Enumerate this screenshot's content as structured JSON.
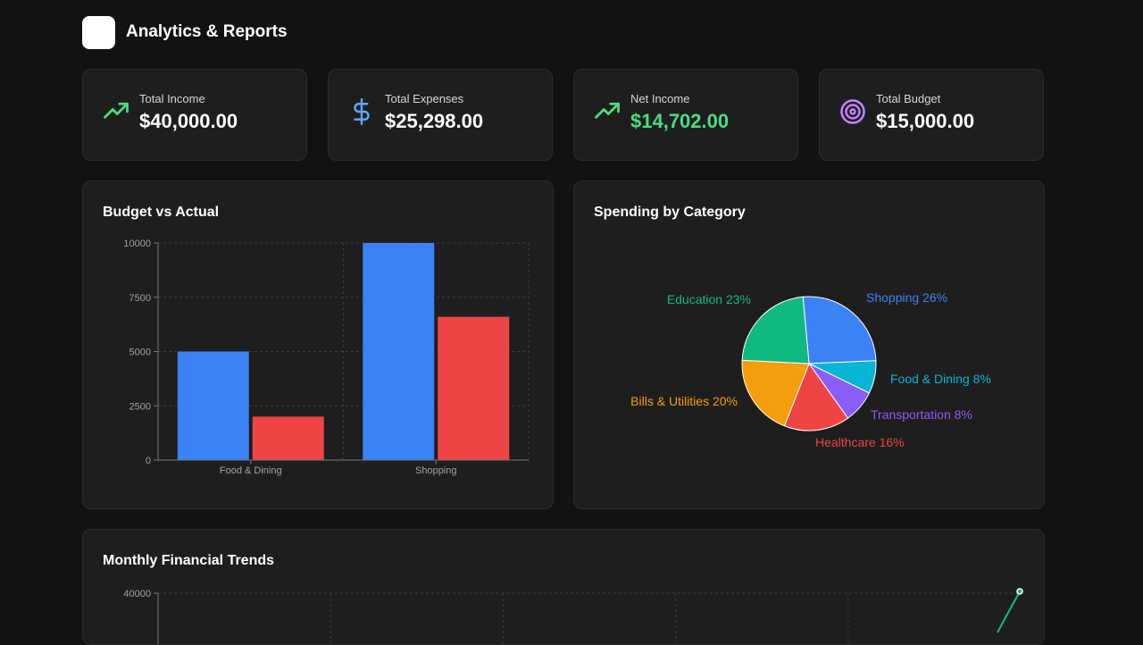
{
  "header": {
    "title": "Analytics & Reports"
  },
  "stats": [
    {
      "label": "Total Income",
      "value": "$40,000.00",
      "icon": "trending-up-icon",
      "color": "#4ade80"
    },
    {
      "label": "Total Expenses",
      "value": "$25,298.00",
      "icon": "dollar-icon",
      "color": "#60a5fa"
    },
    {
      "label": "Net Income",
      "value": "$14,702.00",
      "icon": "trending-up-icon",
      "color": "#4ade80"
    },
    {
      "label": "Total Budget",
      "value": "$15,000.00",
      "icon": "target-icon",
      "color": "#c084fc"
    }
  ],
  "panels": {
    "budget_title": "Budget vs Actual",
    "spending_title": "Spending by Category",
    "trends_title": "Monthly Financial Trends"
  },
  "chart_data": [
    {
      "type": "bar",
      "title": "Budget vs Actual",
      "categories": [
        "Food & Dining",
        "Shopping"
      ],
      "series": [
        {
          "values": [
            5000,
            10000
          ],
          "color": "#3b82f6"
        },
        {
          "values": [
            2000,
            6600
          ],
          "color": "#ef4444"
        }
      ],
      "yticks": [
        "0",
        "2500",
        "5000",
        "7500",
        "10000"
      ],
      "ylim": [
        0,
        10000
      ],
      "grid": true
    },
    {
      "type": "pie",
      "title": "Spending by Category",
      "slices": [
        {
          "label": "Shopping",
          "percent": 26,
          "text": "Shopping 26%",
          "color": "#3b82f6"
        },
        {
          "label": "Food & Dining",
          "percent": 8,
          "text": "Food & Dining 8%",
          "color": "#06b6d4"
        },
        {
          "label": "Transportation",
          "percent": 8,
          "text": "Transportation 8%",
          "color": "#8b5cf6"
        },
        {
          "label": "Healthcare",
          "percent": 16,
          "text": "Healthcare 16%",
          "color": "#ef4444"
        },
        {
          "label": "Bills & Utilities",
          "percent": 20,
          "text": "Bills & Utilities 20%",
          "color": "#f59e0b"
        },
        {
          "label": "Education",
          "percent": 23,
          "text": "Education 23%",
          "color": "#10b981"
        }
      ]
    },
    {
      "type": "line",
      "title": "Monthly Financial Trends",
      "yticks": [
        "40000"
      ],
      "line_color": "#10b981",
      "grid": true
    }
  ]
}
